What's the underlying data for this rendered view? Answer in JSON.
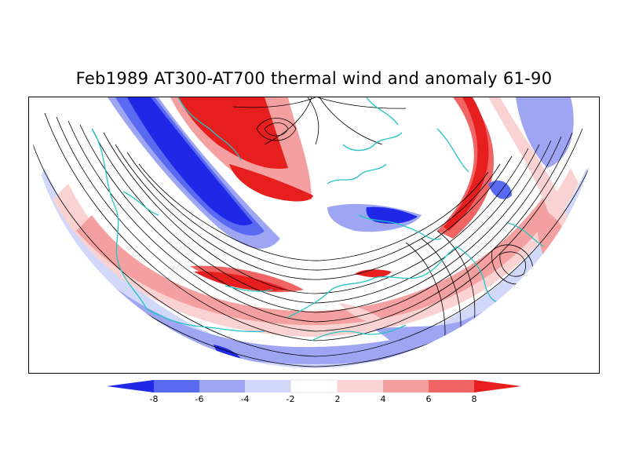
{
  "title": "Feb1989 AT300-AT700 thermal wind and anomaly 61-90",
  "legend": {
    "ticks": [
      "-8",
      "-6",
      "-4",
      "-2",
      "2",
      "4",
      "6",
      "8"
    ],
    "bins": [
      {
        "from": null,
        "to": -8,
        "color": "#1e28e6"
      },
      {
        "from": -8,
        "to": -6,
        "color": "#5a6af0"
      },
      {
        "from": -6,
        "to": -4,
        "color": "#9ea6f4"
      },
      {
        "from": -4,
        "to": -2,
        "color": "#d2d8fa"
      },
      {
        "from": -2,
        "to": 2,
        "color": "#ffffff"
      },
      {
        "from": 2,
        "to": 4,
        "color": "#fad2d2"
      },
      {
        "from": 4,
        "to": 6,
        "color": "#f4a0a0"
      },
      {
        "from": 6,
        "to": 8,
        "color": "#f06464"
      },
      {
        "from": 8,
        "to": null,
        "color": "#e61e1e"
      }
    ]
  },
  "colors": {
    "coastline": "#22c4c4",
    "streamline": "#000000",
    "positive_strong": "#e61e1e",
    "negative_strong": "#1e28e6"
  }
}
